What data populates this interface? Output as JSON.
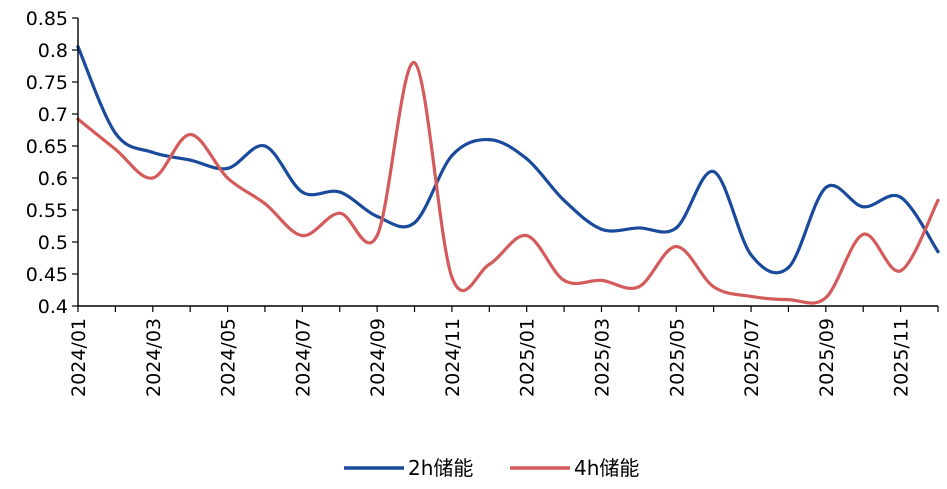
{
  "chart_data": {
    "type": "line",
    "title": "",
    "xlabel": "",
    "ylabel": "",
    "ylim": [
      0.4,
      0.85
    ],
    "y_ticks": [
      "0.4",
      "0.45",
      "0.5",
      "0.55",
      "0.6",
      "0.65",
      "0.7",
      "0.75",
      "0.8",
      "0.85"
    ],
    "x_tick_labels": [
      "2024/01",
      "2024/03",
      "2024/05",
      "2024/07",
      "2024/09",
      "2024/11",
      "2025/01",
      "2025/03",
      "2025/05",
      "2025/07",
      "2025/09",
      "2025/11"
    ],
    "x": [
      "2024/01",
      "2024/02",
      "2024/03",
      "2024/04",
      "2024/05",
      "2024/06",
      "2024/07",
      "2024/08",
      "2024/09",
      "2024/10",
      "2024/11",
      "2024/12",
      "2025/01",
      "2025/02",
      "2025/03",
      "2025/04",
      "2025/05",
      "2025/06",
      "2025/07",
      "2025/08",
      "2025/09",
      "2025/10",
      "2025/11",
      "2025/12"
    ],
    "grid": false,
    "legend_position": "bottom",
    "series": [
      {
        "name": "2h储能",
        "color": "#1a4a9b",
        "values": [
          0.805,
          0.67,
          0.64,
          0.628,
          0.615,
          0.65,
          0.578,
          0.578,
          0.54,
          0.53,
          0.635,
          0.66,
          0.63,
          0.565,
          0.52,
          0.522,
          0.522,
          0.61,
          0.48,
          0.46,
          0.585,
          0.555,
          0.57,
          0.485
        ]
      },
      {
        "name": "4h储能",
        "color": "#d45b5b",
        "values": [
          0.692,
          0.645,
          0.6,
          0.668,
          0.6,
          0.56,
          0.51,
          0.545,
          0.51,
          0.78,
          0.445,
          0.465,
          0.51,
          0.44,
          0.44,
          0.43,
          0.493,
          0.43,
          0.415,
          0.41,
          0.413,
          0.512,
          0.455,
          0.565
        ]
      }
    ]
  }
}
